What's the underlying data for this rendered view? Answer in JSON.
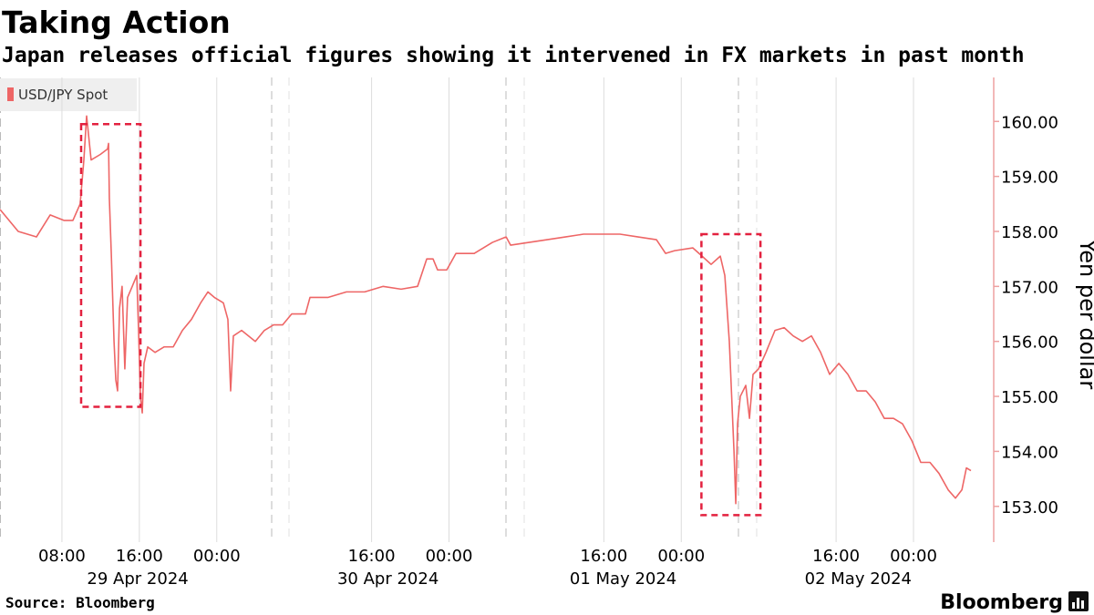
{
  "chart_data": {
    "type": "line",
    "title": "Taking Action",
    "subtitle": "Japan releases official figures showing it intervened in FX markets in past month",
    "ylabel": "Yen per dollar",
    "source": "Source: Bloomberg",
    "brand": "Bloomberg",
    "xlim": [
      "2024-04-29T01:36",
      "2024-05-03T08:06"
    ],
    "ylim": [
      152.35,
      160.8
    ],
    "yticks": [
      {
        "value": 153,
        "label": "153.00"
      },
      {
        "value": 154,
        "label": "154.00"
      },
      {
        "value": 155,
        "label": "155.00"
      },
      {
        "value": 156,
        "label": "156.00"
      },
      {
        "value": 157,
        "label": "157.00"
      },
      {
        "value": 158,
        "label": "158.00"
      },
      {
        "value": 159,
        "label": "159.00"
      },
      {
        "value": 160,
        "label": "160.00"
      }
    ],
    "xticks": [
      {
        "value": "2024-04-29T08:00",
        "label": "08:00"
      },
      {
        "value": "2024-04-29T16:00",
        "label": "16:00"
      },
      {
        "value": "2024-04-30T00:00",
        "label": "00:00"
      },
      {
        "value": "2024-04-30T16:00",
        "label": "16:00"
      },
      {
        "value": "2024-05-01T00:00",
        "label": "00:00"
      },
      {
        "value": "2024-05-01T16:00",
        "label": "16:00"
      },
      {
        "value": "2024-05-02T00:00",
        "label": "00:00"
      },
      {
        "value": "2024-05-02T16:00",
        "label": "16:00"
      },
      {
        "value": "2024-05-03T00:00",
        "label": "00:00"
      }
    ],
    "date_labels": [
      {
        "value": "2024-04-29T15:50",
        "label": "29 Apr 2024"
      },
      {
        "value": "2024-04-30T17:42",
        "label": "30 Apr 2024"
      },
      {
        "value": "2024-05-01T18:00",
        "label": "01 May 2024"
      },
      {
        "value": "2024-05-02T18:17",
        "label": "02 May 2024"
      }
    ],
    "grid": true,
    "highlights": [
      {
        "x": [
          "2024-04-29T09:59",
          "2024-04-29T16:07"
        ],
        "y": [
          154.81,
          159.95
        ],
        "color": "#e3213f"
      },
      {
        "x": [
          "2024-05-02T02:05",
          "2024-05-02T08:11"
        ],
        "y": [
          152.84,
          157.95
        ],
        "color": "#e3213f"
      }
    ],
    "x": [
      "2024-04-29T01:36",
      "2024-04-29T03:29",
      "2024-04-29T05:22",
      "2024-04-29T06:47",
      "2024-04-29T08:12",
      "2024-04-29T09:08",
      "2024-04-29T09:53",
      "2024-04-29T10:16",
      "2024-04-29T10:33",
      "2024-04-29T11:01",
      "2024-04-29T11:58",
      "2024-04-29T12:43",
      "2024-04-29T12:49",
      "2024-04-29T12:54",
      "2024-04-29T13:06",
      "2024-04-29T13:23",
      "2024-04-29T13:34",
      "2024-04-29T13:45",
      "2024-04-29T13:57",
      "2024-04-29T14:13",
      "2024-04-29T14:30",
      "2024-04-29T14:47",
      "2024-04-29T15:16",
      "2024-04-29T15:44",
      "2024-04-29T15:55",
      "2024-04-29T16:07",
      "2024-04-29T16:18",
      "2024-04-29T16:29",
      "2024-04-29T16:52",
      "2024-04-29T17:37",
      "2024-04-29T18:34",
      "2024-04-29T19:30",
      "2024-04-29T20:27",
      "2024-04-29T21:23",
      "2024-04-29T22:20",
      "2024-04-29T23:05",
      "2024-04-29T23:45",
      "2024-04-30T00:41",
      "2024-04-30T01:09",
      "2024-04-30T01:26",
      "2024-04-30T01:43",
      "2024-04-30T02:34",
      "2024-04-30T03:59",
      "2024-04-30T04:55",
      "2024-04-30T05:52",
      "2024-04-30T06:48",
      "2024-04-30T07:45",
      "2024-04-30T09:10",
      "2024-04-30T09:38",
      "2024-04-30T11:31",
      "2024-04-30T13:24",
      "2024-04-30T15:17",
      "2024-04-30T17:10",
      "2024-04-30T19:03",
      "2024-04-30T20:45",
      "2024-04-30T21:08",
      "2024-04-30T21:42",
      "2024-04-30T22:21",
      "2024-04-30T22:49",
      "2024-04-30T23:46",
      "2024-05-01T00:43",
      "2024-05-01T02:36",
      "2024-05-01T04:29",
      "2024-05-01T05:54",
      "2024-05-01T06:22",
      "2024-05-01T08:15",
      "2024-05-01T10:08",
      "2024-05-01T12:01",
      "2024-05-01T13:54",
      "2024-05-01T15:47",
      "2024-05-01T17:40",
      "2024-05-01T19:33",
      "2024-05-01T21:26",
      "2024-05-01T22:23",
      "2024-05-01T23:19",
      "2024-05-02T01:12",
      "2024-05-02T02:09",
      "2024-05-02T03:05",
      "2024-05-02T04:02",
      "2024-05-02T04:30",
      "2024-05-02T04:58",
      "2024-05-02T05:27",
      "2024-05-02T05:38",
      "2024-05-02T05:49",
      "2024-05-02T06:06",
      "2024-05-02T06:40",
      "2024-05-02T07:03",
      "2024-05-02T07:25",
      "2024-05-02T07:59",
      "2024-05-02T08:45",
      "2024-05-02T09:41",
      "2024-05-02T10:38",
      "2024-05-02T11:34",
      "2024-05-02T12:31",
      "2024-05-02T13:27",
      "2024-05-02T14:24",
      "2024-05-02T15:20",
      "2024-05-02T16:17",
      "2024-05-02T17:13",
      "2024-05-02T18:10",
      "2024-05-02T19:06",
      "2024-05-02T20:03",
      "2024-05-02T20:59",
      "2024-05-02T21:56",
      "2024-05-02T22:52",
      "2024-05-02T23:49",
      "2024-05-03T00:45",
      "2024-05-03T01:42",
      "2024-05-03T02:38",
      "2024-05-03T03:35",
      "2024-05-03T04:20",
      "2024-05-03T05:00",
      "2024-05-03T05:28",
      "2024-05-03T05:56"
    ],
    "series": [
      {
        "name": "USD/JPY Spot",
        "color": "#ee6666",
        "values": [
          158.4,
          158.0,
          157.9,
          158.3,
          158.2,
          158.2,
          158.5,
          159.3,
          160.1,
          159.3,
          159.4,
          159.5,
          159.6,
          158.6,
          157.6,
          156.0,
          155.3,
          155.1,
          156.6,
          157.0,
          155.5,
          156.8,
          157.0,
          157.2,
          156.2,
          155.0,
          154.7,
          155.6,
          155.9,
          155.8,
          155.9,
          155.9,
          156.2,
          156.4,
          156.7,
          156.9,
          156.8,
          156.7,
          156.4,
          155.1,
          156.1,
          156.2,
          156.0,
          156.2,
          156.3,
          156.3,
          156.5,
          156.5,
          156.8,
          156.8,
          156.9,
          156.9,
          157.0,
          156.95,
          157.0,
          157.2,
          157.5,
          157.5,
          157.3,
          157.3,
          157.6,
          157.6,
          157.8,
          157.9,
          157.75,
          157.8,
          157.85,
          157.9,
          157.95,
          157.95,
          157.95,
          157.9,
          157.85,
          157.6,
          157.65,
          157.7,
          157.55,
          157.4,
          157.55,
          157.2,
          156.0,
          154.0,
          153.05,
          154.5,
          155.0,
          155.2,
          154.6,
          155.4,
          155.5,
          155.8,
          156.2,
          156.25,
          156.1,
          156.0,
          156.1,
          155.8,
          155.4,
          155.6,
          155.4,
          155.1,
          155.1,
          154.9,
          154.6,
          154.6,
          154.5,
          154.2,
          153.8,
          153.8,
          153.6,
          153.3,
          153.15,
          153.3,
          153.7,
          153.65
        ]
      }
    ]
  }
}
